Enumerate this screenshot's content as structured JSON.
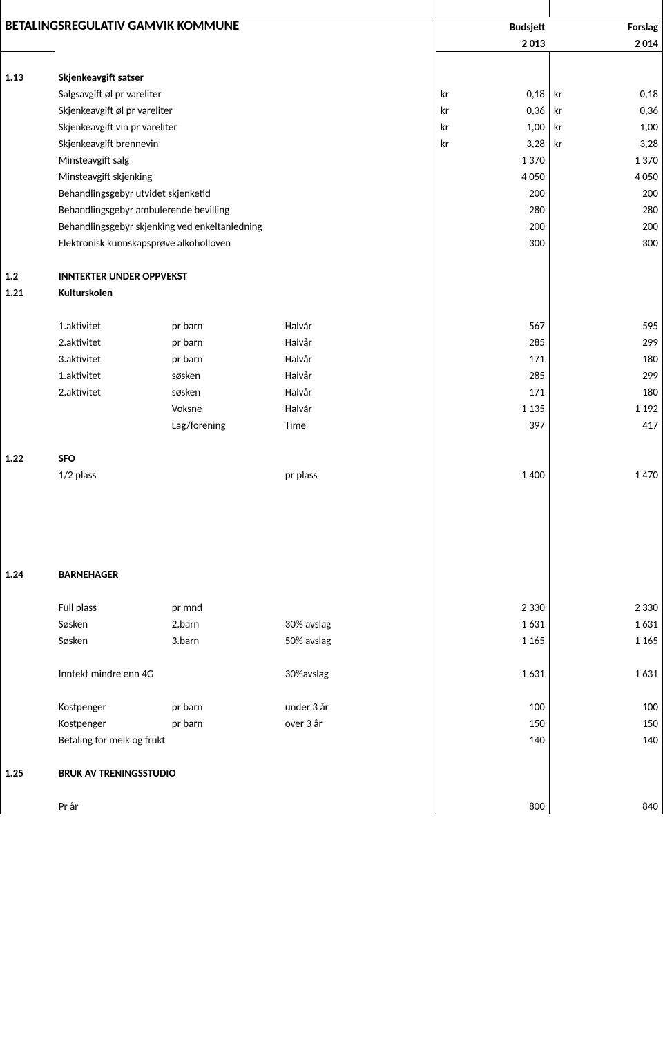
{
  "header": {
    "title": "BETALINGSREGULATIV GAMVIK KOMMUNE",
    "budsjett_label": "Budsjett",
    "forslag_label": "Forslag",
    "year1": "2 013",
    "year2": "2 014"
  },
  "s113": {
    "num": "1.13",
    "title": "Skjenkeavgift satser",
    "rows": [
      {
        "label": "Salgsavgift øl pr vareliter",
        "kr1": "kr",
        "v1": "0,18",
        "kr2": "kr",
        "v2": "0,18"
      },
      {
        "label": "Skjenkeavgift øl pr vareliter",
        "kr1": "kr",
        "v1": "0,36",
        "kr2": "kr",
        "v2": "0,36"
      },
      {
        "label": "Skjenkeavgift vin pr vareliter",
        "kr1": "kr",
        "v1": "1,00",
        "kr2": "kr",
        "v2": "1,00"
      },
      {
        "label": "Skjenkeavgift brennevin",
        "kr1": "kr",
        "v1": "3,28",
        "kr2": "kr",
        "v2": "3,28"
      },
      {
        "label": "Minsteavgift    salg",
        "kr1": "",
        "v1": "1 370",
        "kr2": "",
        "v2": "1 370"
      },
      {
        "label": "Minsteavgift    skjenking",
        "kr1": "",
        "v1": "4 050",
        "kr2": "",
        "v2": "4 050"
      },
      {
        "label": "Behandlingsgebyr utvidet skjenketid",
        "kr1": "",
        "v1": "200",
        "kr2": "",
        "v2": "200"
      },
      {
        "label": "Behandlingsgebyr  ambulerende bevilling",
        "kr1": "",
        "v1": "280",
        "kr2": "",
        "v2": "280"
      },
      {
        "label": "Behandlingsgebyr skjenking ved enkeltanledning",
        "kr1": "",
        "v1": "200",
        "kr2": "",
        "v2": "200"
      },
      {
        "label": "Elektronisk kunnskapsprøve alkoholloven",
        "kr1": "",
        "v1": "300",
        "kr2": "",
        "v2": "300"
      }
    ]
  },
  "s12": {
    "num": "1.2",
    "title": "INNTEKTER UNDER OPPVEKST"
  },
  "s121": {
    "num": "1.21",
    "title": "Kulturskolen",
    "rows": [
      {
        "c1": "1.aktivitet",
        "c2": "pr barn",
        "c3": "Halvår",
        "v1": "567",
        "v2": "595"
      },
      {
        "c1": "2.aktivitet",
        "c2": "pr barn",
        "c3": "Halvår",
        "v1": "285",
        "v2": "299"
      },
      {
        "c1": "3.aktivitet",
        "c2": "pr barn",
        "c3": "Halvår",
        "v1": "171",
        "v2": "180"
      },
      {
        "c1": "1.aktivitet",
        "c2": "søsken",
        "c3": "Halvår",
        "v1": "285",
        "v2": "299"
      },
      {
        "c1": "2.aktivitet",
        "c2": "søsken",
        "c3": "Halvår",
        "v1": "171",
        "v2": "180"
      },
      {
        "c1": "",
        "c2": "Voksne",
        "c3": "Halvår",
        "v1": "1 135",
        "v2": "1 192"
      },
      {
        "c1": "",
        "c2": "Lag/forening",
        "c3": "Time",
        "v1": "397",
        "v2": "417"
      }
    ]
  },
  "s122": {
    "num": "1.22",
    "title": "SFO",
    "row": {
      "c1": "1/2 plass",
      "c3": "pr plass",
      "v1": "1 400",
      "v2": "1 470"
    }
  },
  "s124": {
    "num": "1.24",
    "title": "BARNEHAGER",
    "rows1": [
      {
        "c1": "Full plass",
        "c2": "pr mnd",
        "c3": "",
        "v1": "2 330",
        "v2": "2 330"
      },
      {
        "c1": "Søsken",
        "c2": "2.barn",
        "c3": "30% avslag",
        "v1": "1 631",
        "v2": "1 631"
      },
      {
        "c1": "Søsken",
        "c2": "3.barn",
        "c3": "50% avslag",
        "v1": "1 165",
        "v2": "1 165"
      }
    ],
    "inntekt": {
      "c1": "Inntekt mindre enn 4G",
      "c3": "30%avslag",
      "v1": "1 631",
      "v2": "1 631"
    },
    "rows2": [
      {
        "c1": "Kostpenger",
        "c2": "pr barn",
        "c3": "under 3 år",
        "v1": "100",
        "v2": "100"
      },
      {
        "c1": "Kostpenger",
        "c2": "pr barn",
        "c3": "over 3 år",
        "v1": "150",
        "v2": "150"
      },
      {
        "c1": "Betaling for melk og frukt",
        "c2": "",
        "c3": "",
        "v1": "140",
        "v2": "140"
      }
    ]
  },
  "s125": {
    "num": "1.25",
    "title": "BRUK AV TRENINGSSTUDIO",
    "row": {
      "c1": "Pr år",
      "v1": "800",
      "v2": "840"
    }
  }
}
